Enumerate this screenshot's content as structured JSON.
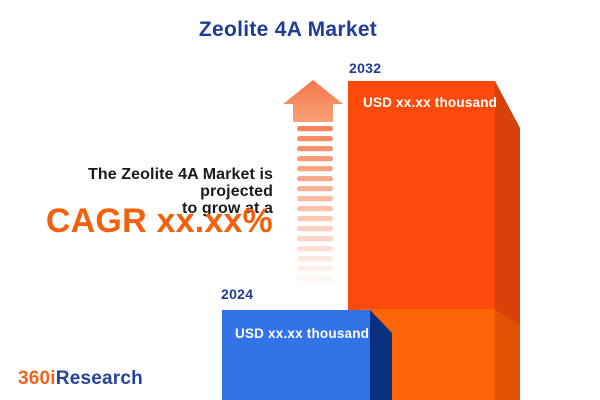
{
  "title": "Zeolite 4A Market",
  "tagline": {
    "line1": "The Zeolite 4A Market is projected",
    "line2": "to grow at a",
    "cagr": "CAGR xx.xx%"
  },
  "chart_data": {
    "type": "bar",
    "title": "Zeolite 4A Market",
    "categories": [
      "2024",
      "2032"
    ],
    "values": [
      null,
      null
    ],
    "value_labels": [
      "USD xx.xx thousand",
      "USD xx.xx thousand"
    ],
    "note": "values shown as xx.xx placeholders in the infographic",
    "legend": "none",
    "grid": false
  },
  "bars": {
    "b2024": {
      "year": "2024",
      "value_label": "USD xx.xx thousand"
    },
    "b2032": {
      "year": "2032",
      "value_label": "USD xx.xx thousand"
    }
  },
  "logo": {
    "part1": "360i",
    "part2": "Research"
  },
  "icons": {
    "arrow": "growth-arrow-icon"
  },
  "arrow": {
    "dash_count": 16,
    "base_rgb": [
      246,
      132,
      88
    ],
    "head_top": "#F3774A",
    "head_bottom": "#F9A077"
  },
  "colors": {
    "navy": "#203C96",
    "text_dark": "#1a1a1a",
    "cagr_orange": "#F4610C",
    "orange_front": "#FB4A0C",
    "orange_side": "#D8410A",
    "orange_light_front": "#FB6505",
    "orange_light_side": "#DF5204",
    "blue_front": "#3273E8",
    "blue_side": "#0A3180",
    "logo_orange": "#F26322",
    "logo_navy": "#24439B",
    "white": "#ffffff"
  }
}
